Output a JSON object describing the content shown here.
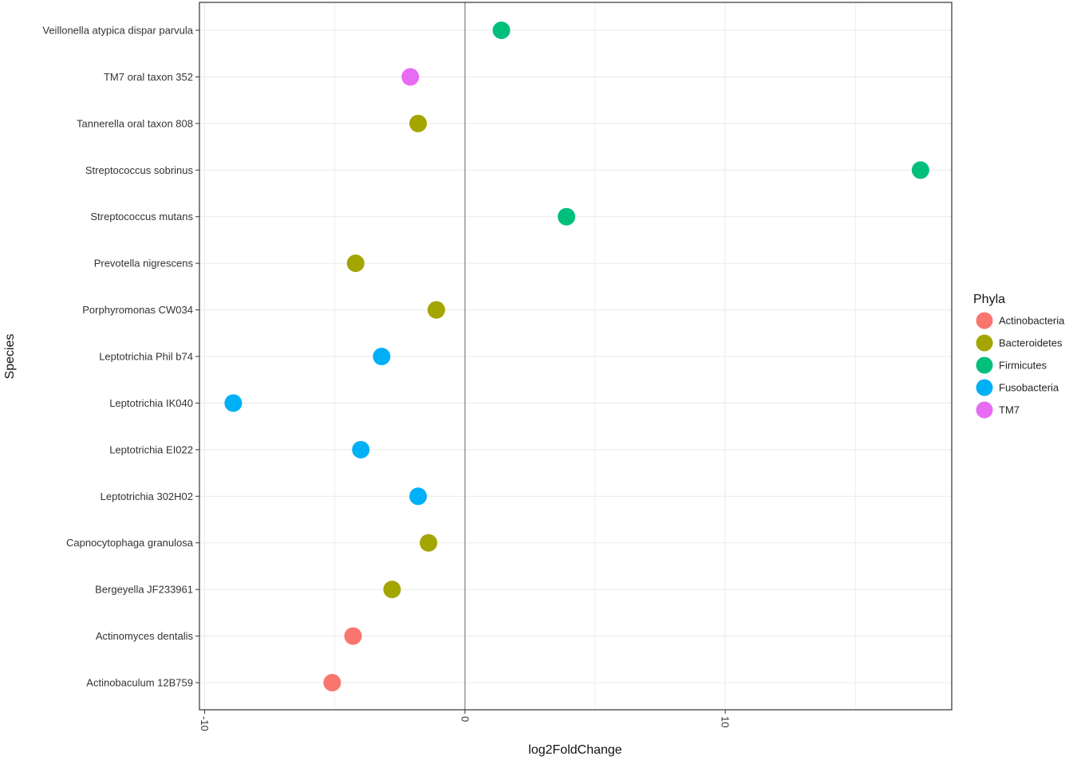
{
  "chart_data": {
    "type": "scatter",
    "xlabel": "log2FoldChange",
    "ylabel": "Species",
    "xlim": [
      -10.2,
      18.7
    ],
    "x_ticks": [
      -10,
      0,
      10
    ],
    "x_tick_labels": [
      "-10",
      "0",
      "10"
    ],
    "grid": true,
    "legend": {
      "title": "Phyla",
      "position": "right",
      "entries": [
        {
          "name": "Actinobacteria",
          "color": "#F8766D"
        },
        {
          "name": "Bacteroidetes",
          "color": "#A3A500"
        },
        {
          "name": "Firmicutes",
          "color": "#00BF7D"
        },
        {
          "name": "Fusobacteria",
          "color": "#00B0F6"
        },
        {
          "name": "TM7",
          "color": "#E76BF3"
        }
      ]
    },
    "categories": [
      "Veillonella atypica dispar parvula",
      "TM7 oral taxon 352",
      "Tannerella oral taxon 808",
      "Streptococcus sobrinus",
      "Streptococcus mutans",
      "Prevotella nigrescens",
      "Porphyromonas CW034",
      "Leptotrichia Phil b74",
      "Leptotrichia IK040",
      "Leptotrichia EI022",
      "Leptotrichia 302H02",
      "Capnocytophaga granulosa",
      "Bergeyella JF233961",
      "Actinomyces dentalis",
      "Actinobaculum 12B759"
    ],
    "points": [
      {
        "species": "Veillonella atypica dispar parvula",
        "x": 1.4,
        "phylum": "Firmicutes"
      },
      {
        "species": "TM7 oral taxon 352",
        "x": -2.1,
        "phylum": "TM7"
      },
      {
        "species": "Tannerella oral taxon 808",
        "x": -1.8,
        "phylum": "Bacteroidetes"
      },
      {
        "species": "Streptococcus sobrinus",
        "x": 17.5,
        "phylum": "Firmicutes"
      },
      {
        "species": "Streptococcus mutans",
        "x": 3.9,
        "phylum": "Firmicutes"
      },
      {
        "species": "Prevotella nigrescens",
        "x": -4.2,
        "phylum": "Bacteroidetes"
      },
      {
        "species": "Porphyromonas CW034",
        "x": -1.1,
        "phylum": "Bacteroidetes"
      },
      {
        "species": "Leptotrichia Phil b74",
        "x": -3.2,
        "phylum": "Fusobacteria"
      },
      {
        "species": "Leptotrichia IK040",
        "x": -8.9,
        "phylum": "Fusobacteria"
      },
      {
        "species": "Leptotrichia EI022",
        "x": -4.0,
        "phylum": "Fusobacteria"
      },
      {
        "species": "Leptotrichia 302H02",
        "x": -1.8,
        "phylum": "Fusobacteria"
      },
      {
        "species": "Capnocytophaga granulosa",
        "x": -1.4,
        "phylum": "Bacteroidetes"
      },
      {
        "species": "Bergeyella JF233961",
        "x": -2.8,
        "phylum": "Bacteroidetes"
      },
      {
        "species": "Actinomyces dentalis",
        "x": -4.3,
        "phylum": "Actinobacteria"
      },
      {
        "species": "Actinobaculum 12B759",
        "x": -5.1,
        "phylum": "Actinobacteria"
      }
    ]
  }
}
